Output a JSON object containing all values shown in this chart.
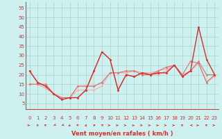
{
  "xlabel": "Vent moyen/en rafales ( km/h )",
  "bg_color": "#cef0ee",
  "grid_color": "#a8d4d0",
  "line_dark": "#d43030",
  "line_mid": "#e07070",
  "line_light": "#eeaaaa",
  "spine_color": "#cc4444",
  "tick_color": "#cc3333",
  "xlim": [
    -0.5,
    23.5
  ],
  "ylim": [
    2,
    58
  ],
  "yticks": [
    5,
    10,
    15,
    20,
    25,
    30,
    35,
    40,
    45,
    50,
    55
  ],
  "xticks": [
    0,
    1,
    2,
    3,
    4,
    5,
    6,
    7,
    8,
    9,
    10,
    11,
    12,
    13,
    14,
    15,
    16,
    17,
    18,
    19,
    20,
    21,
    22,
    23
  ],
  "x": [
    0,
    1,
    2,
    3,
    4,
    5,
    6,
    7,
    8,
    9,
    10,
    11,
    12,
    13,
    14,
    15,
    16,
    17,
    18,
    19,
    20,
    21,
    22,
    23
  ],
  "line_rafales": [
    22,
    16,
    14,
    10,
    7,
    8,
    8,
    12,
    22,
    32,
    28,
    12,
    20,
    19,
    21,
    20,
    21,
    21,
    25,
    19,
    22,
    45,
    28,
    20
  ],
  "line_moyen": [
    22,
    16,
    14,
    10,
    7,
    8,
    8,
    12,
    22,
    32,
    28,
    12,
    20,
    19,
    21,
    20,
    21,
    21,
    25,
    19,
    22,
    27,
    20,
    20
  ],
  "line_trend_hi": [
    15,
    15,
    15,
    10,
    8,
    8,
    14,
    14,
    14,
    16,
    21,
    21,
    22,
    22,
    20,
    20,
    22,
    24,
    25,
    20,
    27,
    26,
    16,
    20
  ],
  "line_trend_mid": [
    15,
    15,
    13,
    10,
    8,
    8,
    14,
    14,
    14,
    16,
    21,
    21,
    21,
    22,
    21,
    21,
    22,
    23,
    25,
    20,
    22,
    26,
    16,
    20
  ],
  "line_trend_lo": [
    15,
    15,
    13,
    10,
    8,
    8,
    12,
    12,
    12,
    14,
    21,
    21,
    21,
    22,
    21,
    21,
    20,
    22,
    25,
    20,
    22,
    26,
    16,
    19
  ],
  "wind_dirs_deg": [
    90,
    330,
    315,
    240,
    240,
    225,
    315,
    10,
    45,
    45,
    90,
    90,
    90,
    90,
    90,
    90,
    90,
    90,
    90,
    315,
    270,
    90,
    315,
    90
  ]
}
